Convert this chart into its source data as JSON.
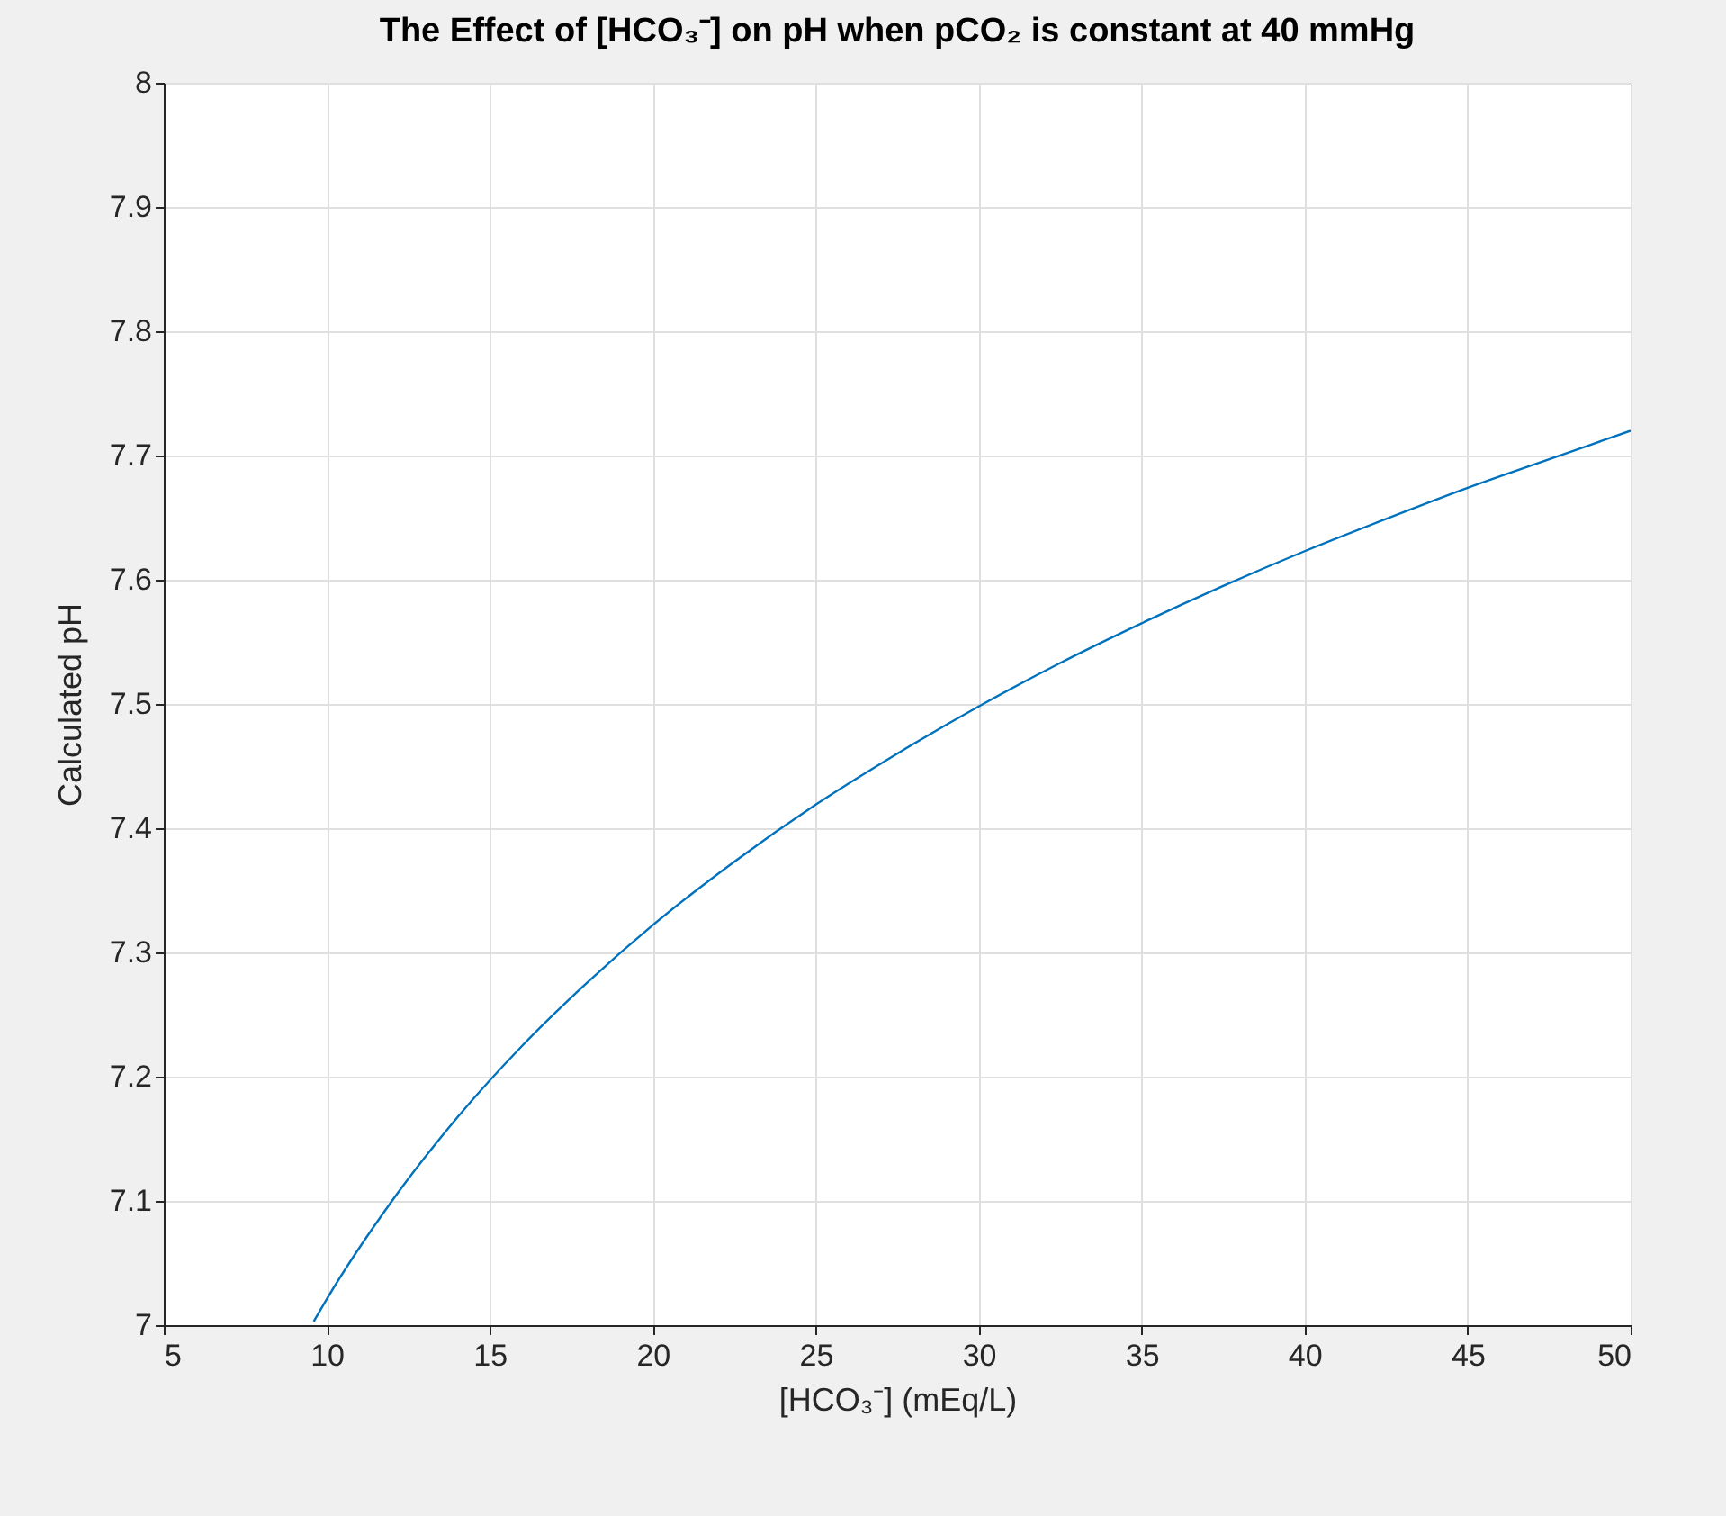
{
  "chart_data": {
    "type": "line",
    "title": "The Effect of [HCO₃⁻] on pH when pCO₂ is constant at 40 mmHg",
    "xlabel": "[HCO₃⁻] (mEq/L)",
    "ylabel": "Calculated pH",
    "x": [
      9.6,
      10,
      12,
      14,
      16,
      18,
      20,
      22.5,
      25,
      27.5,
      30,
      32.5,
      35,
      37.5,
      40,
      42.5,
      45,
      47.5,
      50
    ],
    "series": [
      {
        "color": "#0072bd",
        "values": [
          7.003,
          7.021,
          7.1,
          7.167,
          7.225,
          7.276,
          7.322,
          7.373,
          7.419,
          7.46,
          7.498,
          7.533,
          7.565,
          7.595,
          7.623,
          7.649,
          7.674,
          7.697,
          7.72
        ]
      }
    ],
    "xlim": [
      5,
      50
    ],
    "ylim": [
      7,
      8
    ],
    "xticks": [
      5,
      10,
      15,
      20,
      25,
      30,
      35,
      40,
      45,
      50
    ],
    "yticks": [
      7,
      7.1,
      7.2,
      7.3,
      7.4,
      7.5,
      7.6,
      7.7,
      7.8,
      7.9,
      8
    ],
    "grid": true
  }
}
